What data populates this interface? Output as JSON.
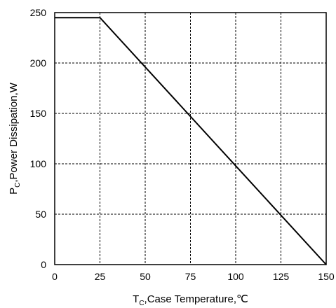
{
  "chart_data": {
    "type": "line",
    "xlabel": {
      "main": "T",
      "sub": "C",
      "rest": ",Case Temperature,℃"
    },
    "ylabel": {
      "main": "P",
      "sub": "C",
      "rest": ",Power Dissipation,W"
    },
    "xlim": [
      0,
      150
    ],
    "ylim": [
      0,
      250
    ],
    "x_ticks": [
      0,
      25,
      50,
      75,
      100,
      125,
      150
    ],
    "y_ticks": [
      0,
      50,
      100,
      150,
      200,
      250
    ],
    "x_tick_labels": [
      "0",
      "25",
      "50",
      "75",
      "100",
      "125",
      "150"
    ],
    "y_tick_labels": [
      "0",
      "50",
      "100",
      "150",
      "200",
      "250"
    ],
    "grid": true,
    "legend": "none",
    "series": [
      {
        "x": [
          0,
          25,
          150
        ],
        "y": [
          245,
          245,
          0
        ],
        "color": "#000000"
      }
    ]
  }
}
